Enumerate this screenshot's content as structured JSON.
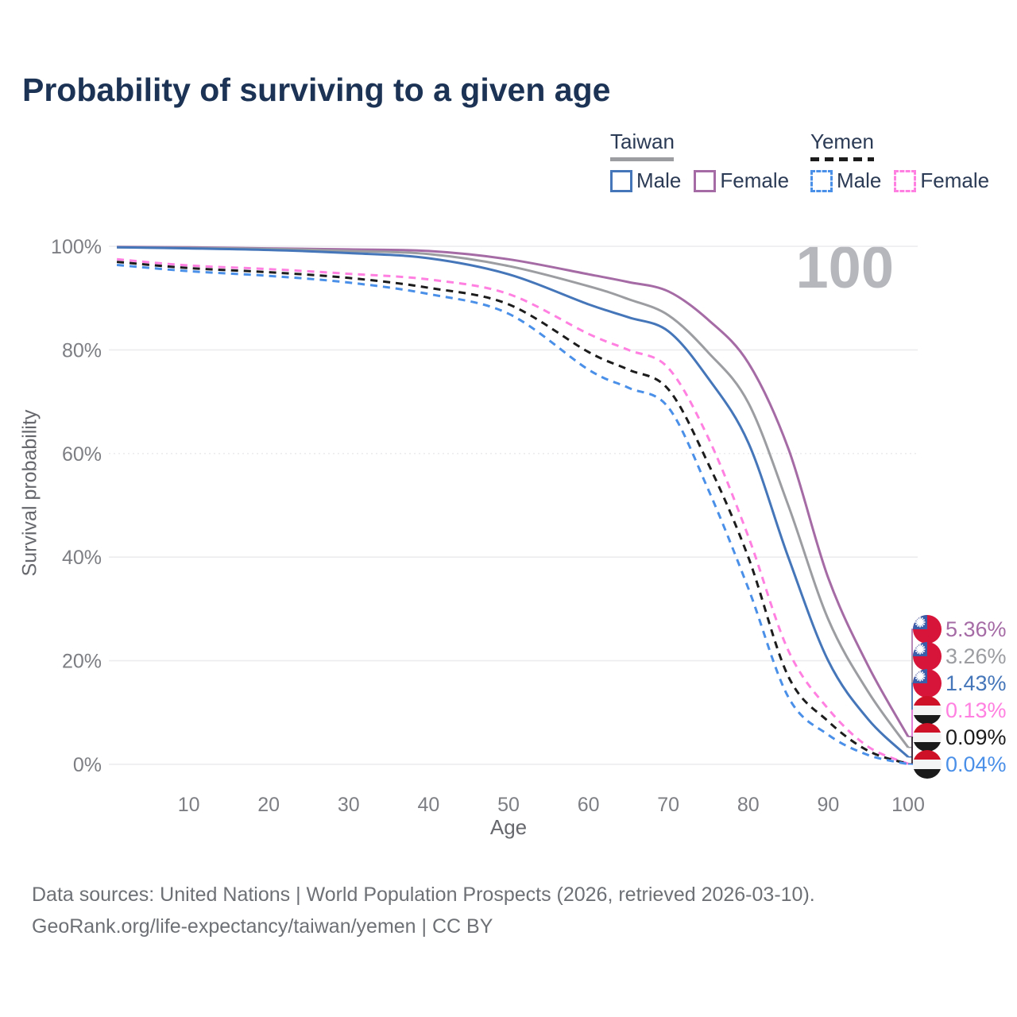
{
  "page": {
    "title": "Probability of surviving to a given age"
  },
  "legend": {
    "groups": [
      {
        "label": "Taiwan",
        "line_color": "#9b9da1",
        "line_style": "solid",
        "items": [
          {
            "label": "Male",
            "color": "#4576b9",
            "style": "solid"
          },
          {
            "label": "Female",
            "color": "#a56ba5",
            "style": "solid"
          }
        ]
      },
      {
        "label": "Yemen",
        "line_color": "#1c1c1c",
        "line_style": "dashed",
        "items": [
          {
            "label": "Male",
            "color": "#4a8fe8",
            "style": "dashed"
          },
          {
            "label": "Female",
            "color": "#ff80e0",
            "style": "dashed"
          }
        ]
      }
    ]
  },
  "chart_data": {
    "type": "line",
    "title": "Probability of surviving to a given age",
    "xlabel": "Age",
    "ylabel": "Survival probability",
    "xlim": [
      0,
      100
    ],
    "ylim": [
      0,
      100
    ],
    "x_ticks": [
      10,
      20,
      30,
      40,
      50,
      60,
      70,
      80,
      90,
      100
    ],
    "y_tick_labels": [
      "0%",
      "20%",
      "40%",
      "60%",
      "80%",
      "100%"
    ],
    "y_ticks": [
      0,
      20,
      40,
      60,
      80,
      100
    ],
    "grid": "horizontal",
    "age_indicator": "100",
    "x": [
      1,
      10,
      20,
      30,
      40,
      50,
      60,
      65,
      70,
      75,
      80,
      85,
      90,
      95,
      100
    ],
    "series": [
      {
        "name": "Taiwan Female",
        "country": "Taiwan",
        "sex": "Female",
        "color": "#a56ba5",
        "dash": false,
        "end_label": "5.36%",
        "values": [
          99.9,
          99.8,
          99.6,
          99.4,
          99.1,
          97.5,
          94.6,
          93.1,
          91.3,
          85.8,
          77.5,
          61.0,
          36.0,
          19.0,
          5.36
        ]
      },
      {
        "name": "Taiwan Both sexes",
        "country": "Taiwan",
        "sex": "Both",
        "color": "#9b9da1",
        "dash": false,
        "end_label": "3.26%",
        "values": [
          99.8,
          99.7,
          99.5,
          99.1,
          98.5,
          96.2,
          92.3,
          89.8,
          86.7,
          79.5,
          69.8,
          50.0,
          28.0,
          14.0,
          3.26
        ]
      },
      {
        "name": "Taiwan Male",
        "country": "Taiwan",
        "sex": "Male",
        "color": "#4576b9",
        "dash": false,
        "end_label": "1.43%",
        "values": [
          99.8,
          99.6,
          99.3,
          98.7,
          97.7,
          94.6,
          88.8,
          86.3,
          83.6,
          74.5,
          62.1,
          40.0,
          20.0,
          8.7,
          1.43
        ]
      },
      {
        "name": "Yemen Female",
        "country": "Yemen",
        "sex": "Female",
        "color": "#ff80e0",
        "dash": true,
        "end_label": "0.13%",
        "values": [
          97.5,
          96.3,
          95.6,
          94.7,
          93.6,
          90.8,
          83.1,
          80.0,
          76.5,
          63.0,
          44.0,
          22.0,
          10.7,
          3.4,
          0.13
        ]
      },
      {
        "name": "Yemen Both sexes",
        "country": "Yemen",
        "sex": "Both",
        "color": "#1c1c1c",
        "dash": true,
        "end_label": "0.09%",
        "values": [
          97.0,
          95.8,
          95.0,
          93.9,
          92.0,
          88.8,
          79.6,
          76.2,
          72.4,
          58.0,
          40.0,
          17.0,
          8.3,
          2.6,
          0.09
        ]
      },
      {
        "name": "Yemen Male",
        "country": "Yemen",
        "sex": "Male",
        "color": "#4a8fe8",
        "dash": true,
        "end_label": "0.04%",
        "values": [
          96.4,
          95.2,
          94.3,
          93.0,
          90.8,
          87.0,
          76.2,
          72.7,
          68.9,
          53.0,
          34.0,
          13.0,
          5.7,
          1.8,
          0.04
        ]
      }
    ]
  },
  "footer": {
    "line1": "Data sources: United Nations | World Population Prospects (2026, retrieved 2026-03-10).",
    "line2": "GeoRank.org/life-expectancy/taiwan/yemen | CC BY"
  }
}
